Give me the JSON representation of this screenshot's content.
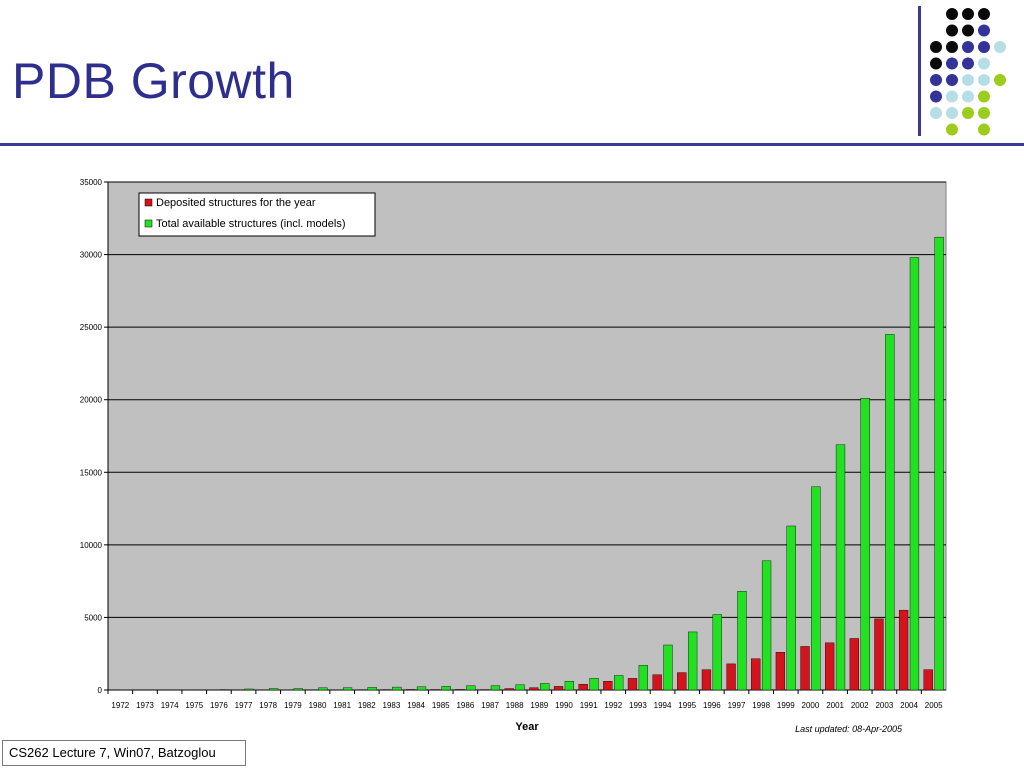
{
  "slide": {
    "title": "PDB Growth",
    "footer": "CS262 Lecture 7, Win07, Batzoglou"
  },
  "decoration": {
    "dot_colors": {
      "black": "#0a0a0a",
      "indigo": "#33339a",
      "lightblue": "#b7dde6",
      "lime": "#9ccc1c"
    }
  },
  "chart_data": {
    "type": "bar",
    "title": "",
    "xlabel": "Year",
    "ylabel": "",
    "ylim": [
      0,
      35000
    ],
    "yticks": [
      0,
      5000,
      10000,
      15000,
      20000,
      25000,
      30000,
      35000
    ],
    "grid": true,
    "legend_position": "top-left",
    "annotation": "Last updated: 08-Apr-2005",
    "categories": [
      "1972",
      "1973",
      "1974",
      "1975",
      "1976",
      "1977",
      "1978",
      "1979",
      "1980",
      "1981",
      "1982",
      "1983",
      "1984",
      "1985",
      "1986",
      "1987",
      "1988",
      "1989",
      "1990",
      "1991",
      "1992",
      "1993",
      "1994",
      "1995",
      "1996",
      "1997",
      "1998",
      "1999",
      "2000",
      "2001",
      "2002",
      "2003",
      "2004",
      "2005"
    ],
    "series": [
      {
        "name": "Deposited structures for the year",
        "color": "#d4141c",
        "values": [
          1,
          1,
          1,
          6,
          6,
          20,
          10,
          8,
          15,
          20,
          25,
          30,
          40,
          35,
          40,
          30,
          100,
          160,
          250,
          400,
          600,
          800,
          1050,
          1200,
          1400,
          1800,
          2150,
          2600,
          3000,
          3250,
          3550,
          4900,
          5500,
          1400
        ]
      },
      {
        "name": "Total available structures (incl. models)",
        "color": "#22e022",
        "values": [
          10,
          15,
          15,
          20,
          30,
          70,
          100,
          100,
          150,
          160,
          180,
          200,
          220,
          250,
          290,
          290,
          360,
          450,
          600,
          800,
          1000,
          1700,
          3100,
          4000,
          5200,
          6800,
          8900,
          11300,
          14000,
          16900,
          20100,
          24500,
          29800,
          31200
        ]
      }
    ]
  }
}
